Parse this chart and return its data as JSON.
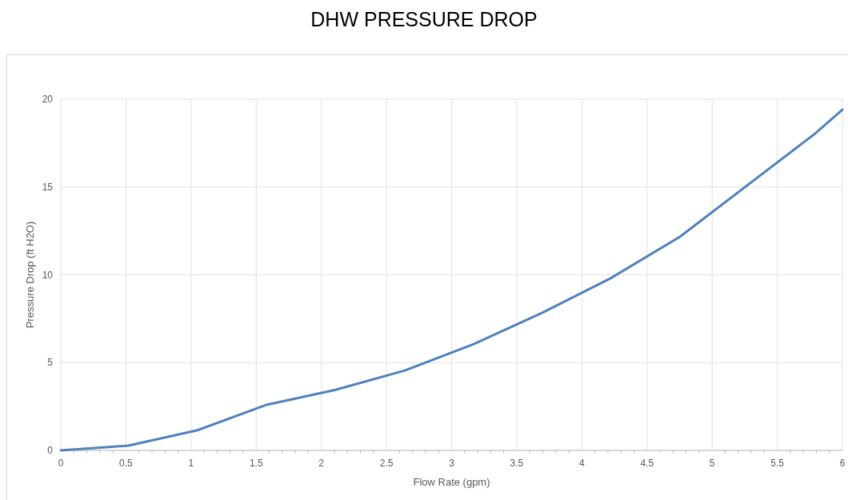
{
  "chart_data": {
    "type": "line",
    "title": "DHW PRESSURE DROP",
    "xlabel": "Flow Rate (gpm)",
    "ylabel": "Pressure Drop (ft H2O)",
    "x": [
      0,
      0.52,
      1.05,
      1.58,
      2.11,
      2.64,
      3.17,
      3.7,
      4.22,
      4.75,
      5.8,
      6
    ],
    "series": [
      {
        "color": "#4f81bd",
        "values": [
          0,
          0.27,
          1.15,
          2.6,
          3.45,
          4.55,
          6.05,
          7.85,
          9.8,
          12.15,
          18.1,
          19.4
        ]
      }
    ],
    "xlim": [
      0,
      6
    ],
    "xticks": [
      0,
      {
        "value": 0.1,
        "label": null
      },
      {
        "value": 0.2,
        "label": null
      },
      {
        "value": 0.3,
        "label": null
      },
      {
        "value": 0.4,
        "label": null
      },
      0.5,
      {
        "value": 0.6,
        "label": null
      },
      {
        "value": 0.7,
        "label": null
      },
      {
        "value": 0.8,
        "label": null
      },
      {
        "value": 0.9,
        "label": null
      },
      1,
      {
        "value": 1.1,
        "label": null
      },
      {
        "value": 1.2,
        "label": null
      },
      {
        "value": 1.3,
        "label": null
      },
      {
        "value": 1.4,
        "label": null
      },
      1.5,
      {
        "value": 1.6,
        "label": null
      },
      {
        "value": 1.7,
        "label": null
      },
      {
        "value": 1.8,
        "label": null
      },
      {
        "value": 1.9,
        "label": null
      },
      2,
      {
        "value": 2.1,
        "label": null
      },
      {
        "value": 2.2,
        "label": null
      },
      {
        "value": 2.3,
        "label": null
      },
      {
        "value": 2.4,
        "label": null
      },
      2.5,
      {
        "value": 2.6,
        "label": null
      },
      {
        "value": 2.7,
        "label": null
      },
      {
        "value": 2.8,
        "label": null
      },
      {
        "value": 2.9,
        "label": null
      },
      3,
      {
        "value": 3.1,
        "label": null
      },
      {
        "value": 3.2,
        "label": null
      },
      {
        "value": 3.3,
        "label": null
      },
      {
        "value": 3.4,
        "label": null
      },
      3.5,
      {
        "value": 3.6,
        "label": null
      },
      {
        "value": 3.7,
        "label": null
      },
      {
        "value": 3.8,
        "label": null
      },
      {
        "value": 3.9,
        "label": null
      },
      4,
      {
        "value": 4.1,
        "label": null
      },
      {
        "value": 4.2,
        "label": null
      },
      {
        "value": 4.3,
        "label": null
      },
      {
        "value": 4.4,
        "label": null
      },
      4.5,
      {
        "value": 4.6,
        "label": null
      },
      {
        "value": 4.7,
        "label": null
      },
      {
        "value": 4.8,
        "label": null
      },
      {
        "value": 4.9,
        "label": null
      },
      5,
      {
        "value": 5.1,
        "label": null
      },
      {
        "value": 5.2,
        "label": null
      },
      {
        "value": 5.3,
        "label": null
      },
      {
        "value": 5.4,
        "label": null
      },
      5.5,
      {
        "value": 5.6,
        "label": null
      },
      {
        "value": 5.7,
        "label": null
      },
      {
        "value": 5.8,
        "label": null
      },
      {
        "value": 5.9,
        "label": null
      },
      6
    ],
    "ylim": [
      0,
      20
    ],
    "yticks": [
      0,
      5,
      10,
      15,
      20
    ],
    "grid": true,
    "marker": "none",
    "line_style": "solid"
  }
}
